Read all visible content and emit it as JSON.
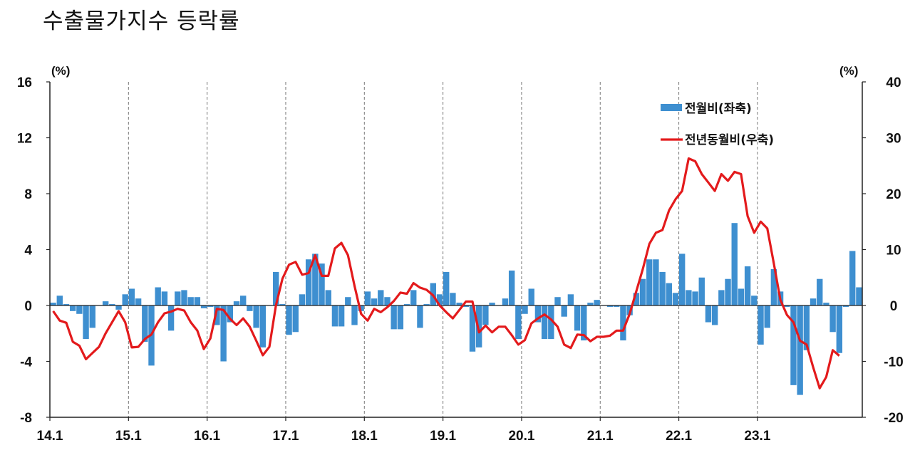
{
  "title": "수출물가지수 등락률",
  "chart_data": {
    "type": "bar+line",
    "left_axis": {
      "unit": "(%)",
      "ylim": [
        -8,
        16
      ],
      "ticks": [
        "16",
        "12",
        "8",
        "4",
        "0",
        "-4",
        "-8"
      ]
    },
    "right_axis": {
      "unit": "(%)",
      "ylim": [
        -20,
        40
      ],
      "ticks": [
        "40",
        "30",
        "20",
        "10",
        "0",
        "-10",
        "-20"
      ]
    },
    "x_labels": [
      "14.1",
      "15.1",
      "16.1",
      "17.1",
      "18.1",
      "19.1",
      "20.1",
      "21.1",
      "22.1",
      "23.1"
    ],
    "grid": "vertical dashed at January of each year",
    "legend_placement": "top-right",
    "series": [
      {
        "name": "전월비(좌축)",
        "kind": "bar",
        "axis": "left",
        "color": "#3e8fd0",
        "start": "2014-01",
        "values": [
          0.2,
          0.7,
          0.1,
          -0.4,
          -0.6,
          -2.4,
          -1.6,
          0.0,
          0.3,
          0.1,
          -0.3,
          0.8,
          1.2,
          0.5,
          -2.6,
          -4.3,
          1.3,
          1.0,
          -1.8,
          1.0,
          1.1,
          0.6,
          0.6,
          -0.2,
          -0.1,
          -1.4,
          -4.0,
          -1.2,
          0.3,
          0.7,
          -0.4,
          -1.6,
          -3.0,
          0.0,
          2.4,
          0.1,
          -2.1,
          -1.9,
          0.8,
          3.3,
          3.7,
          3.0,
          1.1,
          -1.5,
          -1.5,
          0.6,
          -1.4,
          -0.4,
          1.0,
          0.5,
          1.1,
          0.6,
          -1.7,
          -1.7,
          0.1,
          1.1,
          -1.6,
          0.1,
          1.6,
          0.8,
          2.4,
          0.9,
          0.2,
          -0.1,
          -3.3,
          -3.0,
          -1.4,
          0.2,
          0.0,
          0.5,
          2.5,
          -2.4,
          -0.6,
          1.2,
          -1.2,
          -2.4,
          -2.4,
          0.6,
          -0.8,
          0.8,
          -1.8,
          -2.5,
          0.2,
          0.4,
          0.0,
          -0.1,
          -0.1,
          -2.5,
          -0.7,
          0.9,
          1.9,
          3.3,
          3.3,
          2.4,
          1.6,
          0.9,
          3.7,
          1.1,
          1.0,
          2.0,
          -1.2,
          -1.4,
          1.1,
          1.9,
          5.9,
          1.2,
          2.8,
          0.7,
          -2.8,
          -1.6,
          2.6,
          1.0,
          -0.1,
          -5.7,
          -6.4,
          -3.2,
          0.5,
          1.9,
          0.2,
          -1.9,
          -3.4,
          -0.1,
          3.9,
          1.3
        ]
      },
      {
        "name": "전년동월비(우축)",
        "kind": "line",
        "axis": "right",
        "color": "#e31a1c",
        "start": "2014-01",
        "values": [
          -1.0,
          -2.7,
          -3.1,
          -6.5,
          -7.2,
          -9.6,
          -8.5,
          -7.4,
          -5.0,
          -3.0,
          -1.0,
          -3.0,
          -7.5,
          -7.4,
          -6.0,
          -5.2,
          -3.0,
          -1.4,
          -1.1,
          -0.6,
          -0.9,
          -3.0,
          -4.5,
          -7.8,
          -5.9,
          -0.6,
          -0.8,
          -2.4,
          -3.5,
          -2.3,
          -3.8,
          -6.3,
          -8.9,
          -7.4,
          0.0,
          4.8,
          7.3,
          7.8,
          5.5,
          5.8,
          9.0,
          5.3,
          5.3,
          10.2,
          11.2,
          9.0,
          3.5,
          -1.5,
          -2.7,
          -0.6,
          -1.2,
          -0.3,
          0.8,
          2.3,
          2.1,
          4.0,
          3.2,
          2.8,
          1.8,
          0.0,
          -1.2,
          -2.3,
          -0.8,
          0.7,
          0.7,
          -4.8,
          -3.6,
          -4.8,
          -3.8,
          -3.8,
          -5.3,
          -7.0,
          -6.2,
          -3.2,
          -2.3,
          -1.6,
          -2.5,
          -3.8,
          -7.0,
          -7.6,
          -5.2,
          -5.3,
          -6.4,
          -5.6,
          -5.6,
          -5.4,
          -4.5,
          -4.5,
          -1.5,
          2.5,
          6.5,
          11.0,
          13.0,
          13.5,
          17.0,
          19.0,
          20.5,
          26.3,
          25.8,
          23.5,
          22.0,
          20.5,
          23.5,
          22.3,
          23.9,
          23.5,
          16.0,
          13.0,
          15.0,
          13.8,
          7.5,
          1.0,
          -1.7,
          -3.0,
          -6.3,
          -7.0,
          -11.0,
          -14.8,
          -12.8,
          -8.0,
          -9.0
        ]
      }
    ]
  }
}
